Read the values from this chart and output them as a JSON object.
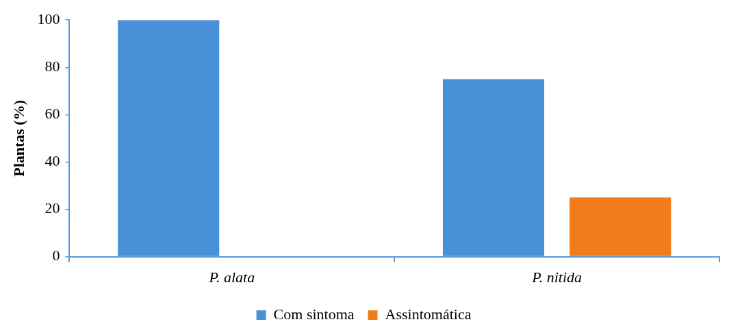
{
  "chart_data": {
    "type": "bar",
    "ylabel": "Plantas (%)",
    "categories": [
      "P. alata",
      "P. nitida"
    ],
    "series": [
      {
        "name": "Com sintoma",
        "color": "#4a90d9",
        "values": [
          100,
          75
        ]
      },
      {
        "name": "Assintomática",
        "color": "#f07d1a",
        "values": [
          0,
          25
        ]
      }
    ],
    "ylim": [
      0,
      100
    ],
    "yticks": [
      0,
      20,
      40,
      60,
      80,
      100
    ],
    "grid": false,
    "legend": "bottom"
  }
}
